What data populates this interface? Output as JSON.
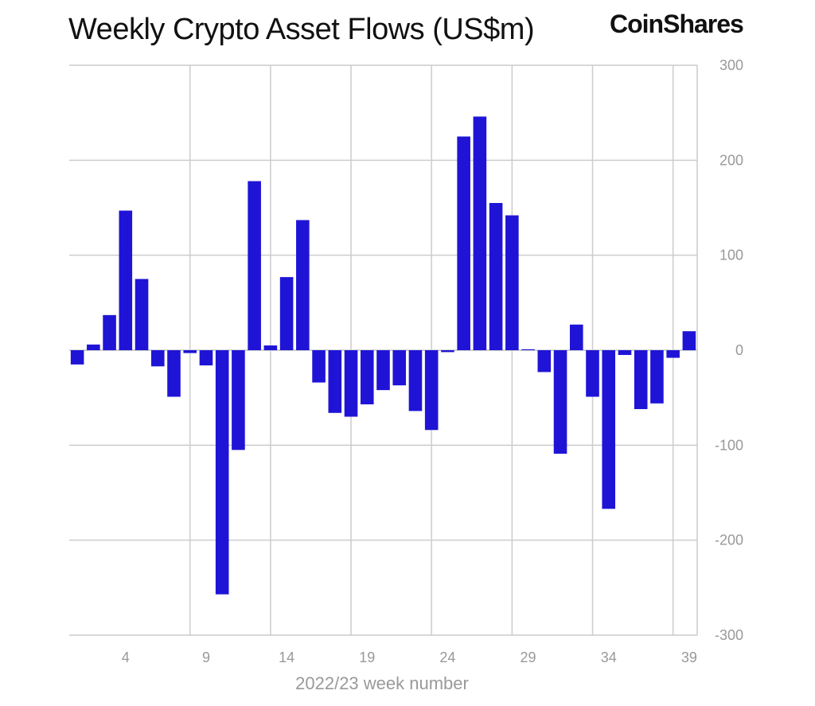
{
  "header": {
    "title": "Weekly Crypto Asset Flows (US$m)",
    "brand": "CoinShares"
  },
  "colors": {
    "bar": "#1f14d6",
    "grid": "#cccccc",
    "text_muted": "#999999"
  },
  "chart_data": {
    "type": "bar",
    "title": "Weekly Crypto Asset Flows (US$m)",
    "xlabel": "2022/23 week number",
    "ylabel": "",
    "ylim": [
      -300,
      300
    ],
    "y_ticks": [
      300,
      200,
      100,
      0,
      -100,
      -200,
      -300
    ],
    "x_tick_labels": [
      "4",
      "9",
      "14",
      "19",
      "24",
      "29",
      "34",
      "39"
    ],
    "axis_side": "right",
    "grid": true,
    "categories": [
      1,
      2,
      3,
      4,
      5,
      6,
      7,
      8,
      9,
      10,
      11,
      12,
      13,
      14,
      15,
      16,
      17,
      18,
      19,
      20,
      21,
      22,
      23,
      24,
      25,
      26,
      27,
      28,
      29,
      30,
      31,
      32,
      33,
      34,
      35,
      36,
      37,
      38,
      39
    ],
    "values": [
      -15,
      6,
      37,
      147,
      75,
      -17,
      -49,
      -3,
      -16,
      -257,
      -105,
      178,
      5,
      77,
      137,
      -34,
      -66,
      -70,
      -57,
      -42,
      -37,
      -64,
      -84,
      -2,
      225,
      246,
      155,
      142,
      1,
      -23,
      -109,
      27,
      -49,
      -167,
      -5,
      -62,
      -56,
      -8,
      20
    ]
  }
}
